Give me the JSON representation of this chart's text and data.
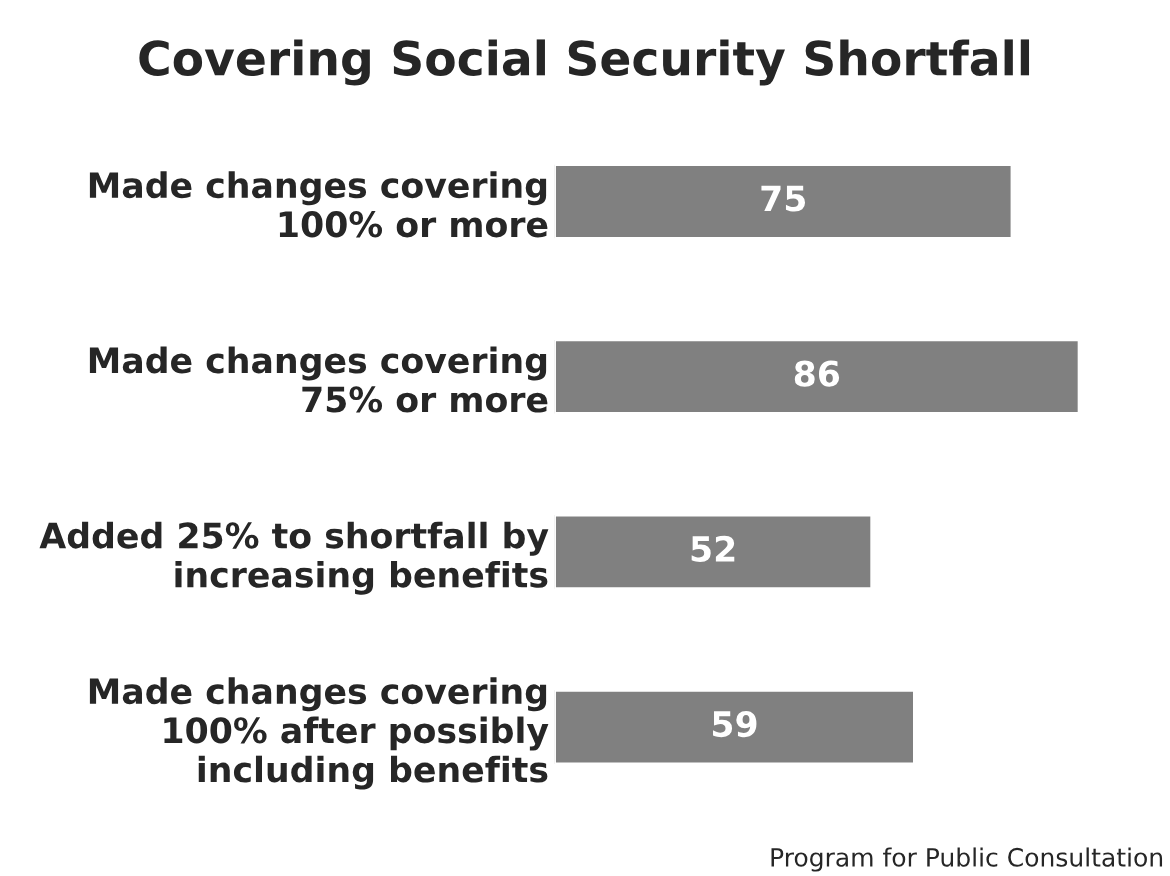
{
  "chart_data": {
    "type": "bar",
    "orientation": "horizontal",
    "title": "Covering Social Security Shortfall",
    "categories": [
      "Made changes covering\n100% or more",
      "Made changes covering\n75% or more",
      "Added 25% to shortfall by\nincreasing benefits",
      "Made changes covering\n100% after possibly\nincluding benefits"
    ],
    "values": [
      75,
      86,
      52,
      59
    ],
    "color": "#808080",
    "data_labels": true,
    "tick_labels": "y",
    "grid": false,
    "legend": false,
    "annotations": [
      "Program for Public Consultation"
    ]
  }
}
